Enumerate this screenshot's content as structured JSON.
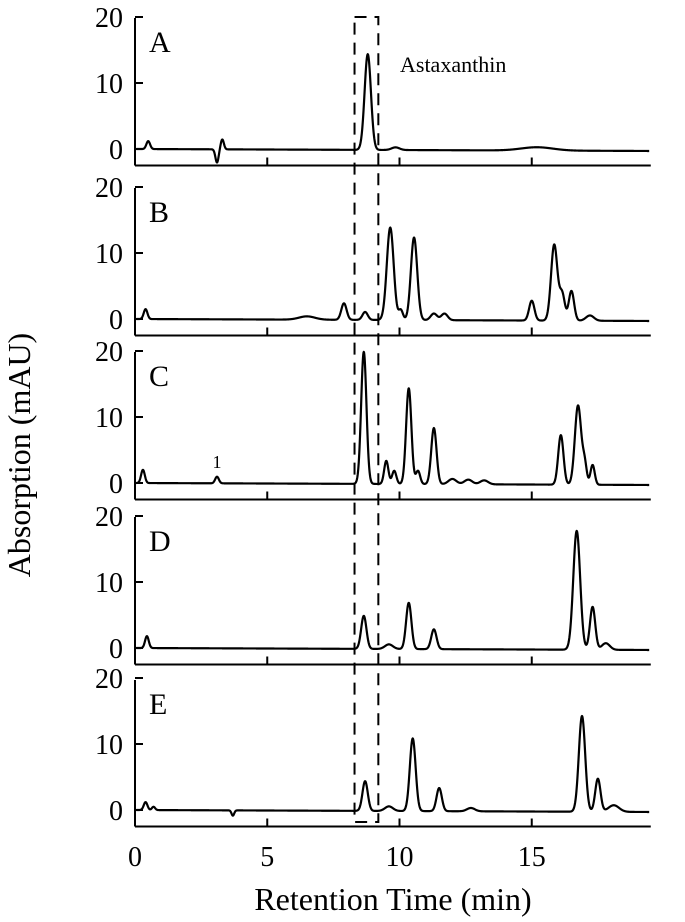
{
  "chart_data": {
    "type": "line",
    "xlabel": "Retention Time (min)",
    "ylabel": "Absorption (mAU)",
    "xlim": [
      0,
      19.5
    ],
    "ylim": [
      -2,
      20
    ],
    "x_ticks": [
      "0",
      "5",
      "10",
      "15"
    ],
    "y_ticks": [
      "0",
      "10",
      "20"
    ],
    "highlight_window": [
      8.3,
      9.2
    ],
    "annotation": "Astaxanthin",
    "panels": [
      {
        "label": "A",
        "baseline": 0,
        "peaks": [
          {
            "x": 0.5,
            "h": 1.2,
            "w": 0.07
          },
          {
            "x": 3.1,
            "h": -2.0,
            "w": 0.06
          },
          {
            "x": 3.3,
            "h": 1.5,
            "w": 0.06
          },
          {
            "x": 8.8,
            "h": 14.5,
            "w": 0.12
          },
          {
            "x": 9.85,
            "h": 0.4,
            "w": 0.15
          },
          {
            "x": 15.2,
            "h": 0.5,
            "w": 0.6
          }
        ]
      },
      {
        "label": "B",
        "baseline": 0,
        "peaks": [
          {
            "x": 0.4,
            "h": 1.5,
            "w": 0.07
          },
          {
            "x": 6.5,
            "h": 0.5,
            "w": 0.3
          },
          {
            "x": 7.9,
            "h": 2.5,
            "w": 0.1
          },
          {
            "x": 8.7,
            "h": 1.2,
            "w": 0.1
          },
          {
            "x": 9.65,
            "h": 14,
            "w": 0.13
          },
          {
            "x": 10.05,
            "h": 1.5,
            "w": 0.08
          },
          {
            "x": 10.55,
            "h": 12.5,
            "w": 0.12
          },
          {
            "x": 11.3,
            "h": 1.0,
            "w": 0.12
          },
          {
            "x": 11.7,
            "h": 1.0,
            "w": 0.12
          },
          {
            "x": 15.0,
            "h": 3.0,
            "w": 0.1
          },
          {
            "x": 15.85,
            "h": 11.5,
            "w": 0.12
          },
          {
            "x": 16.15,
            "h": 4.0,
            "w": 0.1
          },
          {
            "x": 16.5,
            "h": 4.5,
            "w": 0.1
          },
          {
            "x": 17.2,
            "h": 0.8,
            "w": 0.15
          }
        ]
      },
      {
        "label": "C",
        "baseline": 0,
        "peaks": [
          {
            "x": 0.3,
            "h": 2.0,
            "w": 0.07
          },
          {
            "x": 3.1,
            "h": 1.0,
            "w": 0.07
          },
          {
            "x": 8.65,
            "h": 20,
            "w": 0.1
          },
          {
            "x": 9.5,
            "h": 3.5,
            "w": 0.08
          },
          {
            "x": 9.8,
            "h": 2.0,
            "w": 0.08
          },
          {
            "x": 10.35,
            "h": 14.5,
            "w": 0.1
          },
          {
            "x": 10.7,
            "h": 2.0,
            "w": 0.08
          },
          {
            "x": 11.3,
            "h": 8.5,
            "w": 0.1
          },
          {
            "x": 12.0,
            "h": 0.8,
            "w": 0.15
          },
          {
            "x": 12.6,
            "h": 0.7,
            "w": 0.15
          },
          {
            "x": 13.2,
            "h": 0.6,
            "w": 0.15
          },
          {
            "x": 16.1,
            "h": 7.5,
            "w": 0.1
          },
          {
            "x": 16.75,
            "h": 12,
            "w": 0.12
          },
          {
            "x": 17.0,
            "h": 3.0,
            "w": 0.08
          },
          {
            "x": 17.3,
            "h": 3.0,
            "w": 0.08
          }
        ],
        "peak_labels": [
          {
            "x": 3.1,
            "y": 2.3,
            "text": "1"
          }
        ]
      },
      {
        "label": "D",
        "baseline": 0,
        "peaks": [
          {
            "x": 0.45,
            "h": 1.8,
            "w": 0.07
          },
          {
            "x": 8.65,
            "h": 5.0,
            "w": 0.1
          },
          {
            "x": 9.6,
            "h": 0.7,
            "w": 0.15
          },
          {
            "x": 10.35,
            "h": 7.0,
            "w": 0.1
          },
          {
            "x": 11.3,
            "h": 3.0,
            "w": 0.1
          },
          {
            "x": 16.7,
            "h": 18,
            "w": 0.13
          },
          {
            "x": 17.3,
            "h": 6.5,
            "w": 0.1
          },
          {
            "x": 17.8,
            "h": 1.0,
            "w": 0.15
          }
        ]
      },
      {
        "label": "E",
        "baseline": 0,
        "peaks": [
          {
            "x": 0.4,
            "h": 1.2,
            "w": 0.07
          },
          {
            "x": 0.7,
            "h": 0.5,
            "w": 0.06
          },
          {
            "x": 3.7,
            "h": -0.8,
            "w": 0.05
          },
          {
            "x": 8.7,
            "h": 4.5,
            "w": 0.1
          },
          {
            "x": 9.6,
            "h": 0.7,
            "w": 0.15
          },
          {
            "x": 10.5,
            "h": 11,
            "w": 0.11
          },
          {
            "x": 11.5,
            "h": 3.5,
            "w": 0.1
          },
          {
            "x": 12.7,
            "h": 0.5,
            "w": 0.15
          },
          {
            "x": 16.9,
            "h": 14.5,
            "w": 0.12
          },
          {
            "x": 17.5,
            "h": 5.0,
            "w": 0.1
          },
          {
            "x": 18.1,
            "h": 1.0,
            "w": 0.2
          }
        ]
      }
    ]
  }
}
